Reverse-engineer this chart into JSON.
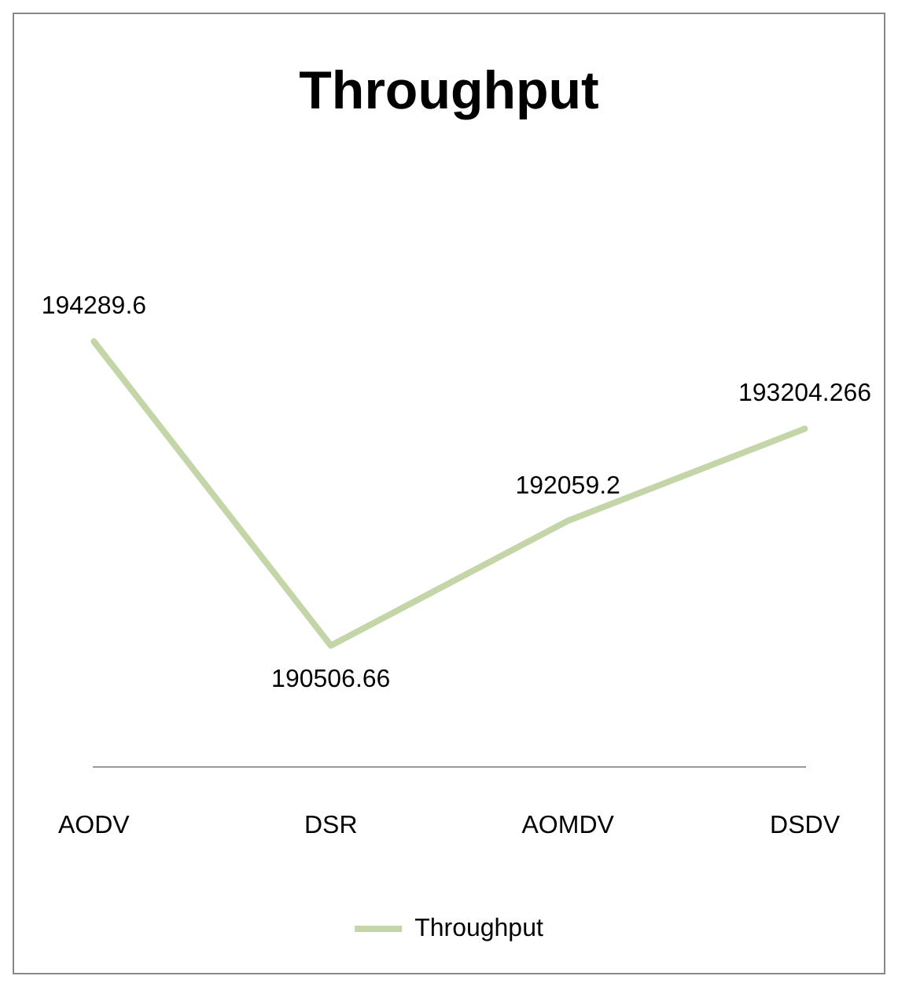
{
  "chart_data": {
    "type": "line",
    "title": "Throughput",
    "categories": [
      "AODV",
      "DSR",
      "AOMDV",
      "DSDV"
    ],
    "series": [
      {
        "name": "Throughput",
        "color": "#c4d5a8",
        "values": [
          194289.6,
          190506.66,
          192059.2,
          193204.266
        ]
      }
    ],
    "tick_labels": "x",
    "data_labels": true,
    "legend": "bottom",
    "grid": false,
    "marker": "none",
    "line_style": "solid"
  }
}
